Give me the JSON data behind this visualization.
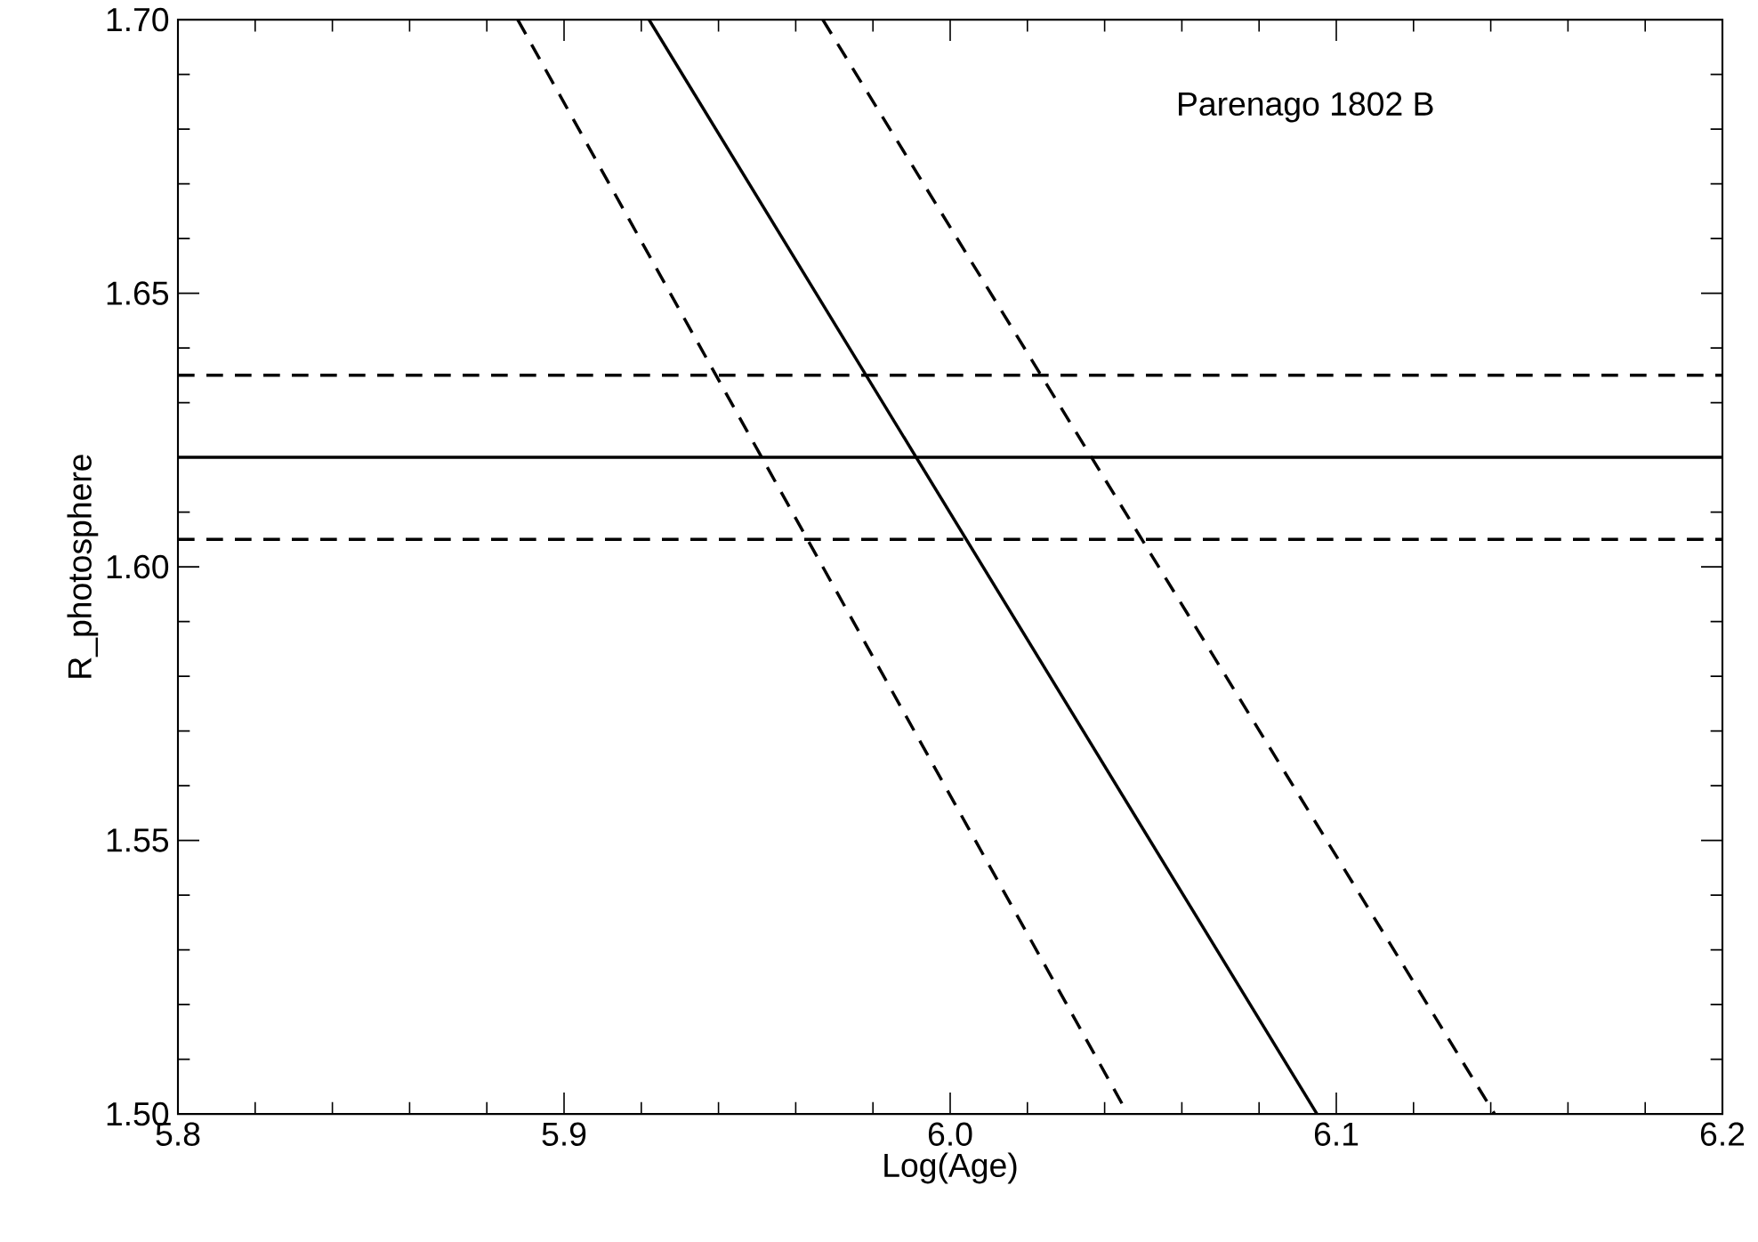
{
  "chart_data": {
    "type": "line",
    "xlabel": "Log(Age)",
    "ylabel": "R_photosphere",
    "annotations": [
      "Parenago 1802 B"
    ],
    "xlim": [
      5.8,
      6.2
    ],
    "ylim": [
      1.5,
      1.7
    ],
    "xticks": [
      {
        "value": 5.8,
        "label": "5.8"
      },
      {
        "value": 5.9,
        "label": "5.9"
      },
      {
        "value": 6.0,
        "label": "6.0"
      },
      {
        "value": 6.1,
        "label": "6.1"
      },
      {
        "value": 6.2,
        "label": "6.2"
      }
    ],
    "yticks": [
      {
        "value": 1.5,
        "label": "1.50"
      },
      {
        "value": 1.55,
        "label": "1.55"
      },
      {
        "value": 1.6,
        "label": "1.60"
      },
      {
        "value": 1.65,
        "label": "1.65"
      },
      {
        "value": 1.7,
        "label": "1.70"
      }
    ],
    "series": [
      {
        "color": "#000000",
        "line_style": "solid",
        "x": [
          5.922,
          6.095
        ],
        "values": [
          1.7,
          1.5
        ]
      },
      {
        "color": "#000000",
        "line_style": "dashed",
        "x": [
          5.888,
          6.046
        ],
        "values": [
          1.7,
          1.5
        ]
      },
      {
        "color": "#000000",
        "line_style": "dashed",
        "x": [
          5.967,
          6.141
        ],
        "values": [
          1.7,
          1.5
        ]
      }
    ],
    "ref_lines": [
      {
        "axis": "y",
        "value": 1.62,
        "color": "#000000",
        "line_style": "solid"
      },
      {
        "axis": "y",
        "value": 1.635,
        "color": "#000000",
        "line_style": "dashed"
      },
      {
        "axis": "y",
        "value": 1.605,
        "color": "#000000",
        "line_style": "dashed"
      }
    ]
  }
}
